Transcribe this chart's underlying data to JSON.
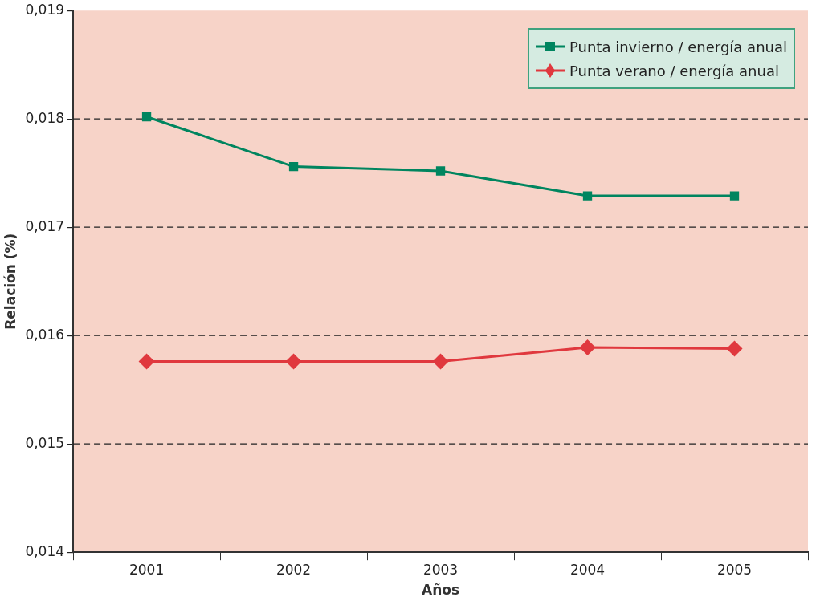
{
  "chart_data": {
    "type": "line",
    "xlabel": "Años",
    "ylabel": "Relación (%)",
    "categories": [
      "2001",
      "2002",
      "2003",
      "2004",
      "2005"
    ],
    "series": [
      {
        "name": "Punta invierno / energía anual",
        "color": "#00855f",
        "marker": "square",
        "values": [
          0.01802,
          0.01756,
          0.01752,
          0.01729,
          0.01729
        ]
      },
      {
        "name": "Punta verano / energía anual",
        "color": "#e0383e",
        "marker": "diamond",
        "values": [
          0.01576,
          0.01576,
          0.01576,
          0.01589,
          0.01588
        ]
      }
    ],
    "ylim": [
      0.014,
      0.019
    ],
    "yticks": [
      {
        "value": 0.014,
        "label": "0,014"
      },
      {
        "value": 0.015,
        "label": "0,015"
      },
      {
        "value": 0.016,
        "label": "0,016"
      },
      {
        "value": 0.017,
        "label": "0,017"
      },
      {
        "value": 0.018,
        "label": "0,018"
      },
      {
        "value": 0.019,
        "label": "0,019"
      }
    ],
    "grid": "y",
    "legend": "top right",
    "line_style": "solid"
  }
}
